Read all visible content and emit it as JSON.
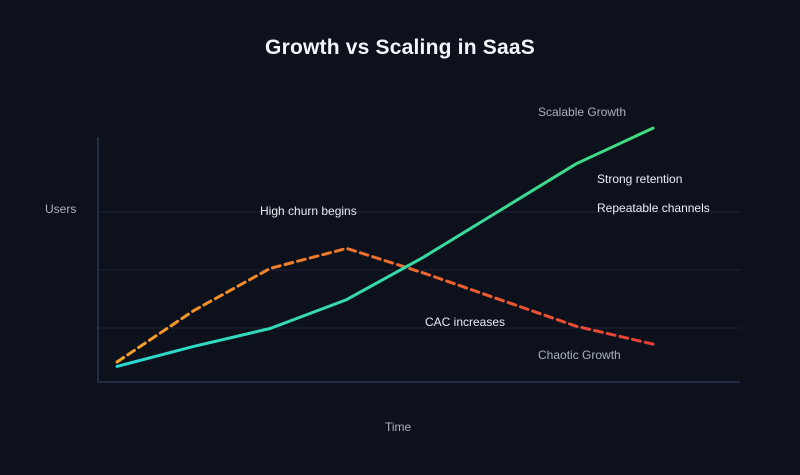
{
  "chart_data": {
    "type": "line",
    "title": "Growth vs Scaling in SaaS",
    "xlabel": "Time",
    "ylabel": "Users",
    "x": [
      0,
      1,
      2,
      3,
      4,
      5,
      6,
      7
    ],
    "ylim": [
      0,
      110
    ],
    "grid": "horizontal",
    "gridline_values": [
      24,
      50,
      76
    ],
    "legend_position": "inline-labels",
    "series": [
      {
        "name": "Scalable Growth",
        "line_style": "solid",
        "color_start": "#2cd9d1",
        "color_end": "#41db7d",
        "values": [
          7,
          16,
          24,
          37,
          56,
          77,
          98,
          114
        ]
      },
      {
        "name": "Chaotic Growth",
        "line_style": "dashed",
        "color_start": "#f5a325",
        "color_mid": "#ee6c2e",
        "color_end": "#e93e38",
        "values": [
          9,
          32,
          51,
          60,
          49,
          37,
          25,
          17
        ]
      }
    ],
    "annotations": [
      {
        "text": "High churn begins"
      },
      {
        "text": "Strong retention"
      },
      {
        "text": "Repeatable channels"
      },
      {
        "text": "CAC increases"
      }
    ],
    "colors": {
      "background": "#0d111c",
      "gridline": "#1d2436",
      "axis": "#2b3350",
      "title_text": "#f2f5fa",
      "annotation_text": "#e9edf4",
      "axis_label_text": "#a9b0bf"
    }
  }
}
